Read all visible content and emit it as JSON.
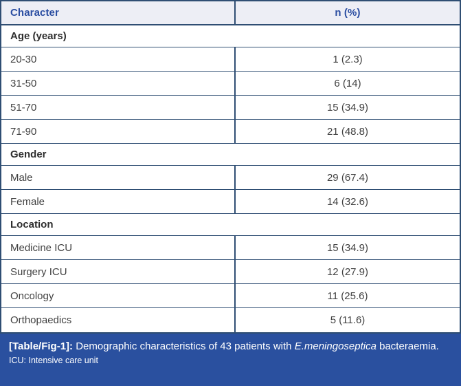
{
  "table": {
    "columns": [
      "Character",
      "n (%)"
    ],
    "sections": [
      {
        "title": "Age (years)",
        "rows": [
          {
            "label": "20-30",
            "value": "1 (2.3)"
          },
          {
            "label": "31-50",
            "value": "6 (14)"
          },
          {
            "label": "51-70",
            "value": "15 (34.9)"
          },
          {
            "label": "71-90",
            "value": "21 (48.8)"
          }
        ]
      },
      {
        "title": "Gender",
        "rows": [
          {
            "label": "Male",
            "value": "29 (67.4)"
          },
          {
            "label": "Female",
            "value": "14 (32.6)"
          }
        ]
      },
      {
        "title": "Location",
        "rows": [
          {
            "label": "Medicine ICU",
            "value": "15 (34.9)"
          },
          {
            "label": "Surgery ICU",
            "value": "12 (27.9)"
          },
          {
            "label": "Oncology",
            "value": "11 (25.6)"
          },
          {
            "label": "Orthopaedics",
            "value": "5 (11.6)"
          }
        ]
      }
    ]
  },
  "caption": {
    "label": "[Table/Fig-1]:",
    "text_before_italic": " Demographic characteristics of 43 patients with ",
    "italic": "E.meningoseptica",
    "text_after_italic": " bacteraemia.",
    "footnote": "ICU: Intensive care unit"
  },
  "colors": {
    "border": "#2f4e73",
    "header_bg": "#edeef5",
    "header_text": "#2a4da1",
    "caption_bg": "#2a509f",
    "body_text": "#414141"
  }
}
